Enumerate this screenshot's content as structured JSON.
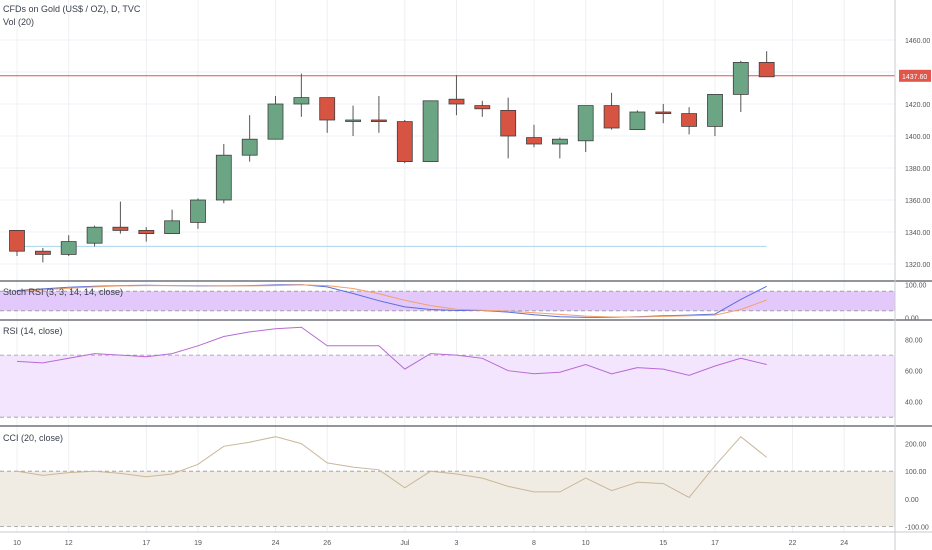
{
  "chart_data": [
    {
      "type": "candlestick",
      "title": "CFDs on Gold (US$ / OZ), D, TVC",
      "subtitle": "Vol (20)",
      "ylim": [
        1310,
        1485
      ],
      "y_ticks": [
        "1320.00",
        "1340.00",
        "1360.00",
        "1380.00",
        "1400.00",
        "1420.00",
        "1440.00",
        "1460.00"
      ],
      "x_ticks": [
        {
          "index": 0,
          "label": "10"
        },
        {
          "index": 2,
          "label": "12"
        },
        {
          "index": 5,
          "label": "17"
        },
        {
          "index": 7,
          "label": "19"
        },
        {
          "index": 10,
          "label": "24"
        },
        {
          "index": 12,
          "label": "26"
        },
        {
          "index": 15,
          "label": "Jul"
        },
        {
          "index": 17,
          "label": "3"
        },
        {
          "index": 20,
          "label": "8"
        },
        {
          "index": 22,
          "label": "10"
        },
        {
          "index": 25,
          "label": "15"
        },
        {
          "index": 27,
          "label": "17"
        },
        {
          "index": 30,
          "label": "22"
        },
        {
          "index": 32,
          "label": "24"
        }
      ],
      "candles": [
        {
          "o": 1341,
          "h": 1341,
          "l": 1325,
          "c": 1328
        },
        {
          "o": 1328,
          "h": 1330,
          "l": 1321,
          "c": 1326
        },
        {
          "o": 1326,
          "h": 1338,
          "l": 1325,
          "c": 1334
        },
        {
          "o": 1333,
          "h": 1344,
          "l": 1331,
          "c": 1343
        },
        {
          "o": 1343,
          "h": 1359,
          "l": 1339,
          "c": 1341
        },
        {
          "o": 1341,
          "h": 1343,
          "l": 1334,
          "c": 1339
        },
        {
          "o": 1339,
          "h": 1354,
          "l": 1339,
          "c": 1347
        },
        {
          "o": 1346,
          "h": 1361,
          "l": 1342,
          "c": 1360
        },
        {
          "o": 1360,
          "h": 1395,
          "l": 1358,
          "c": 1388
        },
        {
          "o": 1388,
          "h": 1413,
          "l": 1384,
          "c": 1398
        },
        {
          "o": 1398,
          "h": 1425,
          "l": 1398,
          "c": 1420
        },
        {
          "o": 1420,
          "h": 1439,
          "l": 1412,
          "c": 1424
        },
        {
          "o": 1424,
          "h": 1424,
          "l": 1402,
          "c": 1410
        },
        {
          "o": 1410,
          "h": 1419,
          "l": 1400,
          "c": 1410
        },
        {
          "o": 1410,
          "h": 1425,
          "l": 1402,
          "c": 1409
        },
        {
          "o": 1409,
          "h": 1410,
          "l": 1383,
          "c": 1384
        },
        {
          "o": 1384,
          "h": 1422,
          "l": 1384,
          "c": 1422
        },
        {
          "o": 1423,
          "h": 1438,
          "l": 1413,
          "c": 1420
        },
        {
          "o": 1419,
          "h": 1422,
          "l": 1412,
          "c": 1417
        },
        {
          "o": 1416,
          "h": 1424,
          "l": 1386,
          "c": 1400
        },
        {
          "o": 1399,
          "h": 1407,
          "l": 1393,
          "c": 1395
        },
        {
          "o": 1395,
          "h": 1399,
          "l": 1386,
          "c": 1398
        },
        {
          "o": 1397,
          "h": 1418,
          "l": 1390,
          "c": 1419
        },
        {
          "o": 1419,
          "h": 1427,
          "l": 1404,
          "c": 1405
        },
        {
          "o": 1404,
          "h": 1416,
          "l": 1404,
          "c": 1415
        },
        {
          "o": 1415,
          "h": 1420,
          "l": 1408,
          "c": 1414
        },
        {
          "o": 1414,
          "h": 1418,
          "l": 1401,
          "c": 1406
        },
        {
          "o": 1406,
          "h": 1426,
          "l": 1400,
          "c": 1426
        },
        {
          "o": 1426,
          "h": 1447,
          "l": 1415,
          "c": 1446
        },
        {
          "o": 1446,
          "h": 1453,
          "l": 1437,
          "c": 1437
        }
      ],
      "last_price": "1437.60",
      "up_color": "#6ba583",
      "down_color": "#d75442",
      "support_level": 1331
    },
    {
      "type": "line",
      "title": "Stoch RSI (3, 3, 14, 14, close)",
      "ylim": [
        -5,
        108
      ],
      "y_ticks": [
        "100.00",
        "0.00"
      ],
      "band": [
        20,
        80
      ],
      "series": [
        {
          "color": "#5b6ee0",
          "values": [
            82,
            87,
            92,
            95,
            97,
            98,
            97,
            96,
            96,
            97,
            99,
            100,
            93,
            73,
            51,
            32,
            24,
            21,
            21,
            16,
            8,
            2,
            0,
            0,
            2,
            5,
            7,
            10,
            55,
            95
          ]
        },
        {
          "color": "#f2a06a",
          "values": [
            78,
            84,
            89,
            93,
            96,
            97,
            97,
            97,
            96,
            96,
            97,
            99,
            97,
            88,
            72,
            52,
            36,
            25,
            22,
            19,
            14,
            9,
            4,
            1,
            1,
            3,
            5,
            7,
            24,
            53
          ]
        }
      ]
    },
    {
      "type": "line",
      "title": "RSI (14, close)",
      "ylim": [
        25,
        92
      ],
      "y_ticks": [
        "80.00",
        "60.00",
        "40.00"
      ],
      "band": [
        30,
        70
      ],
      "series": [
        {
          "color": "#b96ad6",
          "values": [
            66,
            65,
            68,
            71,
            70,
            69,
            71,
            76,
            82,
            85,
            87,
            88,
            76,
            76,
            76,
            61,
            71,
            70,
            68,
            60,
            58,
            59,
            64,
            58,
            62,
            61,
            57,
            63,
            68,
            64
          ]
        }
      ]
    },
    {
      "type": "line",
      "title": "CCI (20, close)",
      "ylim": [
        -120,
        260
      ],
      "y_ticks": [
        "200.00",
        "100.00",
        "0.00",
        "-100.00"
      ],
      "band": [
        -100,
        100
      ],
      "series": [
        {
          "color": "#c9b79a",
          "values": [
            100,
            85,
            95,
            100,
            92,
            80,
            90,
            125,
            190,
            205,
            225,
            200,
            130,
            115,
            105,
            40,
            100,
            90,
            75,
            45,
            25,
            25,
            75,
            30,
            60,
            55,
            5,
            120,
            225,
            150
          ]
        }
      ]
    }
  ]
}
